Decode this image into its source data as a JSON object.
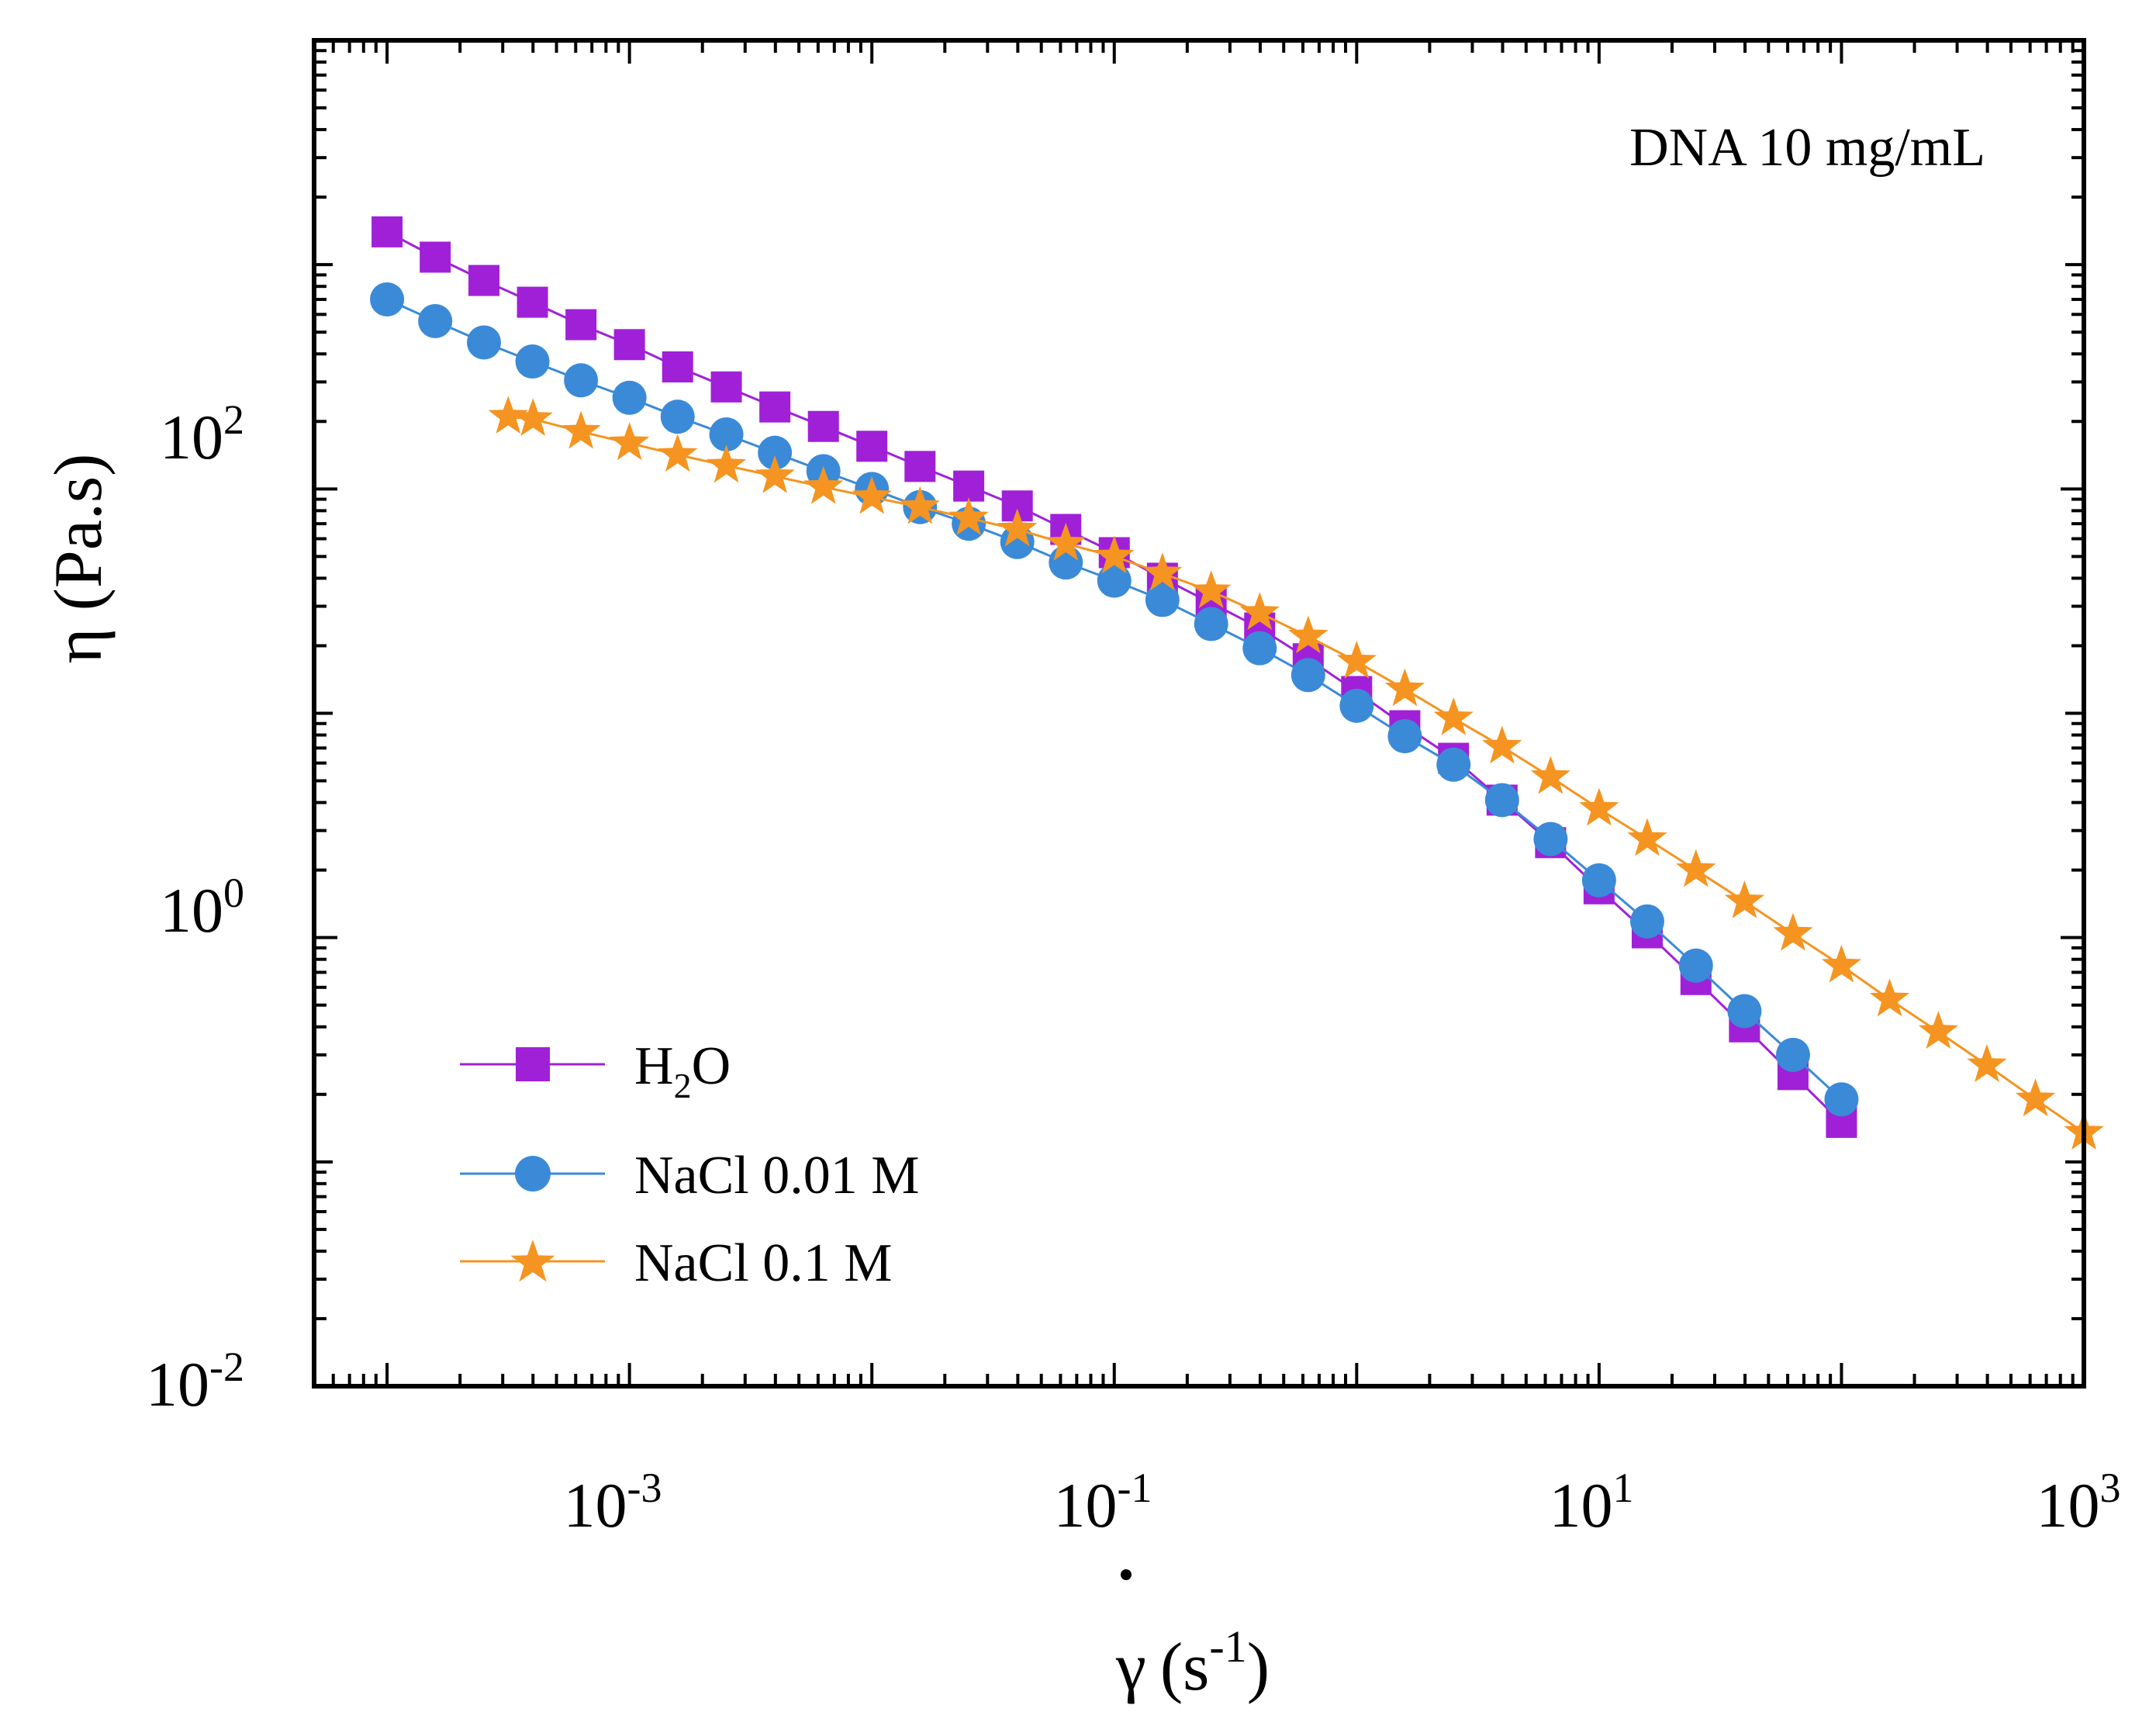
{
  "chart_data": {
    "type": "line",
    "scale": {
      "x": "log",
      "y": "log"
    },
    "xlim": [
      5e-05,
      1000
    ],
    "ylim": [
      0.01,
      10000
    ],
    "xlabel": {
      "symbol": "γ",
      "unit_base": "(s",
      "unit_exp": "-1",
      "unit_close": ")"
    },
    "ylabel": "η (Pa.s)",
    "annotation": "DNA 10 mg/mL",
    "x_ticks": [
      {
        "base": "10",
        "exp": "-3",
        "value": 0.001
      },
      {
        "base": "10",
        "exp": "-1",
        "value": 0.1
      },
      {
        "base": "10",
        "exp": "1",
        "value": 10
      },
      {
        "base": "10",
        "exp": "3",
        "value": 1000
      }
    ],
    "y_ticks": [
      {
        "base": "10",
        "exp": "-2",
        "value": 0.01
      },
      {
        "base": "10",
        "exp": "0",
        "value": 1
      },
      {
        "base": "10",
        "exp": "2",
        "value": 100
      }
    ],
    "legend_position": "bottom-left",
    "series": [
      {
        "name": "H2O",
        "label_main": "H",
        "label_sub": "2",
        "label_rest": "O",
        "color": "#a020d8",
        "marker": "square",
        "x": [
          0.0001,
          0.000158,
          0.000251,
          0.000398,
          0.000631,
          0.001,
          0.00158,
          0.00251,
          0.00398,
          0.00631,
          0.01,
          0.0158,
          0.0251,
          0.0398,
          0.0631,
          0.1,
          0.158,
          0.251,
          0.398,
          0.631,
          1,
          1.58,
          2.51,
          3.98,
          6.31,
          10,
          15.8,
          25.1,
          39.8,
          63.1,
          100
        ],
        "y": [
          1400,
          1080,
          850,
          680,
          540,
          440,
          350,
          285,
          232,
          190,
          155,
          126,
          103,
          84,
          66,
          52,
          40,
          31,
          24,
          17.5,
          12.5,
          8.8,
          6.3,
          4.1,
          2.65,
          1.65,
          1.05,
          0.65,
          0.4,
          0.245,
          0.15
        ]
      },
      {
        "name": "NaCl 0.01 M",
        "label_main": "NaCl 0.01 M",
        "label_sub": "",
        "label_rest": "",
        "color": "#3a8ad8",
        "marker": "circle",
        "x": [
          0.0001,
          0.000158,
          0.000251,
          0.000398,
          0.000631,
          0.001,
          0.00158,
          0.00251,
          0.00398,
          0.00631,
          0.01,
          0.0158,
          0.0251,
          0.0398,
          0.0631,
          0.1,
          0.158,
          0.251,
          0.398,
          0.631,
          1,
          1.58,
          2.51,
          3.98,
          6.31,
          10,
          15.8,
          25.1,
          39.8,
          63.1,
          100
        ],
        "y": [
          700,
          560,
          450,
          370,
          305,
          255,
          210,
          175,
          145,
          120,
          100,
          83,
          70,
          58,
          47,
          39,
          32,
          25,
          19.5,
          14.8,
          10.8,
          7.9,
          5.9,
          4.1,
          2.75,
          1.8,
          1.18,
          0.75,
          0.47,
          0.3,
          0.19
        ]
      },
      {
        "name": "NaCl 0.1 M",
        "label_main": "NaCl 0.1 M",
        "label_sub": "",
        "label_rest": "",
        "color": "#f59420",
        "marker": "star",
        "x": [
          0.000316,
          0.0004,
          0.000631,
          0.001,
          0.00158,
          0.00251,
          0.00398,
          0.00631,
          0.01,
          0.0158,
          0.0251,
          0.0398,
          0.0631,
          0.1,
          0.158,
          0.251,
          0.398,
          0.631,
          1,
          1.58,
          2.51,
          3.98,
          6.31,
          10,
          15.8,
          25.1,
          39.8,
          63.1,
          100,
          158,
          251,
          398,
          631,
          1000
        ],
        "y": [
          210,
          205,
          180,
          160,
          142,
          127,
          114,
          102,
          92,
          83,
          74,
          66,
          57,
          50,
          42,
          35,
          28,
          22,
          17,
          12.8,
          9.5,
          7.1,
          5.2,
          3.75,
          2.75,
          2.0,
          1.45,
          1.04,
          0.75,
          0.53,
          0.38,
          0.27,
          0.19,
          0.135
        ]
      }
    ]
  }
}
